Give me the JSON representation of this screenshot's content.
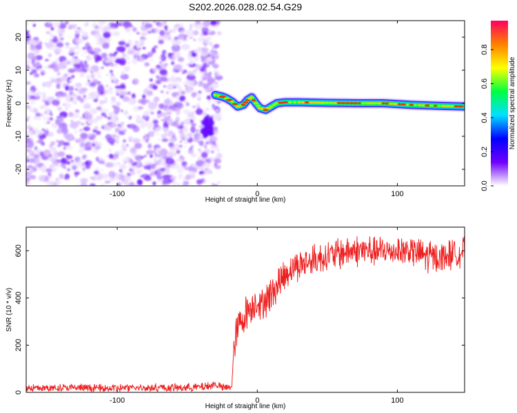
{
  "title": "S202.2026.028.02.54.G29",
  "chart_data": [
    {
      "type": "heatmap",
      "xlabel": "Height of straight line (km)",
      "ylabel": "Frequency (Hz)",
      "xlim": [
        -165,
        148
      ],
      "ylim": [
        -25,
        25
      ],
      "x_ticks": [
        -100,
        0,
        100
      ],
      "y_ticks": [
        -20,
        -10,
        0,
        10,
        20
      ],
      "noise_region_x": [
        -165,
        -30
      ],
      "ridge": [
        {
          "x": -30,
          "y": 2.5
        },
        {
          "x": -25,
          "y": 2
        },
        {
          "x": -22,
          "y": 1.5
        },
        {
          "x": -18,
          "y": 0.5
        },
        {
          "x": -14,
          "y": -1
        },
        {
          "x": -10,
          "y": -0.5
        },
        {
          "x": -7,
          "y": 1
        },
        {
          "x": -4,
          "y": 1.8
        },
        {
          "x": -1,
          "y": 0
        },
        {
          "x": 2,
          "y": -1.5
        },
        {
          "x": 6,
          "y": -2
        },
        {
          "x": 10,
          "y": -1
        },
        {
          "x": 14,
          "y": 0
        },
        {
          "x": 20,
          "y": 0.3
        },
        {
          "x": 30,
          "y": 0.3
        },
        {
          "x": 50,
          "y": 0.1
        },
        {
          "x": 70,
          "y": 0
        },
        {
          "x": 90,
          "y": 0
        },
        {
          "x": 110,
          "y": -0.5
        },
        {
          "x": 130,
          "y": -0.8
        },
        {
          "x": 148,
          "y": -1
        }
      ],
      "colorbar": {
        "label": "Normalized spectral amplitude",
        "ticks": [
          0.0,
          0.2,
          0.4,
          0.6,
          0.8
        ],
        "range": [
          0,
          0.97
        ],
        "colors": [
          "#ffffff",
          "#6f00ff",
          "#0000ff",
          "#00e0ff",
          "#00ff40",
          "#ffff00",
          "#ff8000",
          "#ff0060"
        ]
      }
    },
    {
      "type": "line",
      "xlabel": "Height of straight line (km)",
      "ylabel": "SNR (10 * v/v)",
      "xlim": [
        -165,
        148
      ],
      "ylim": [
        0,
        700
      ],
      "x_ticks": [
        -100,
        0,
        100
      ],
      "y_ticks": [
        0,
        200,
        400,
        600
      ],
      "color": "#ee2020",
      "series": [
        {
          "x": [
            -165,
            -150,
            -130,
            -110,
            -90,
            -70,
            -50,
            -35,
            -30,
            -25,
            -20,
            -18,
            -17,
            -15,
            -12,
            -10,
            -8,
            -5,
            -2,
            0,
            2,
            5,
            10,
            15,
            20,
            25,
            30,
            40,
            50,
            60,
            70,
            80,
            90,
            100,
            110,
            120,
            130,
            140,
            148
          ],
          "y": [
            18,
            18,
            19,
            18,
            18,
            19,
            20,
            25,
            35,
            20,
            20,
            30,
            150,
            260,
            300,
            310,
            340,
            360,
            380,
            390,
            360,
            390,
            420,
            460,
            500,
            530,
            540,
            560,
            580,
            590,
            600,
            600,
            595,
            600,
            600,
            580,
            570,
            590,
            600
          ]
        }
      ]
    }
  ]
}
